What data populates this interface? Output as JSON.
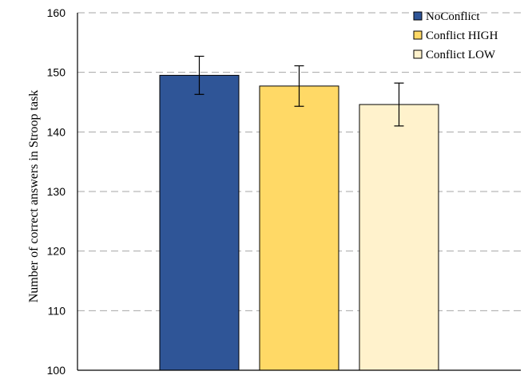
{
  "chart_data": {
    "type": "bar",
    "title": "",
    "xlabel": "",
    "ylabel": "Number of correct answers in Stroop task",
    "ylim": [
      100,
      160
    ],
    "yticks": [
      100,
      110,
      120,
      130,
      140,
      150,
      160
    ],
    "grid": true,
    "legend_position": "top-right",
    "series": [
      {
        "name": "NoConflict",
        "value": 149.5,
        "error": 3.2,
        "color": "#2f5597"
      },
      {
        "name": "Conflict HIGH",
        "value": 147.7,
        "error": 3.4,
        "color": "#ffd966"
      },
      {
        "name": "Conflict LOW",
        "value": 144.6,
        "error": 3.6,
        "color": "#fff2cc"
      }
    ]
  }
}
